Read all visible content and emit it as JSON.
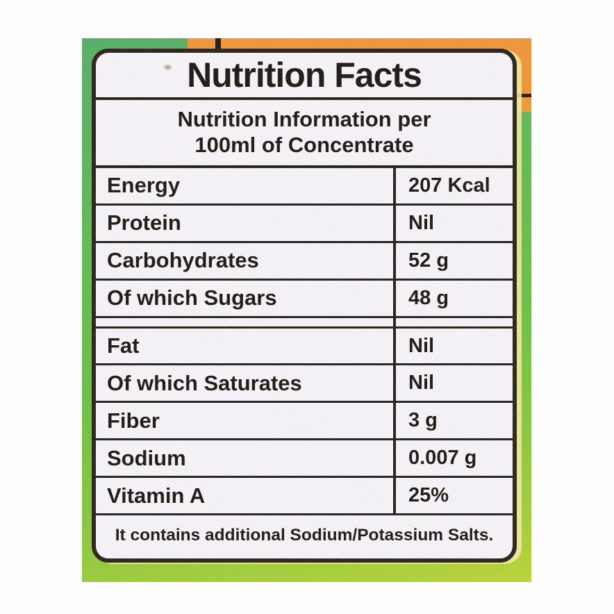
{
  "photo": {
    "palette": {
      "package_green_top": "#55ad66",
      "package_green_mid": "#68c043",
      "package_green_bottom": "#aed037",
      "package_orange": "#ee9331",
      "label_background": "#f6f3f8",
      "label_ink": "#211b14"
    }
  },
  "label": {
    "title": "Nutrition Facts",
    "subtitle_line1": "Nutrition Information per",
    "subtitle_line2": "100ml of Concentrate",
    "rows": [
      {
        "name": "Energy",
        "value": "207 Kcal"
      },
      {
        "name": "Protein",
        "value": "Nil"
      },
      {
        "name": "Carbohydrates",
        "value": "52 g"
      },
      {
        "name": "Of which Sugars",
        "value": "48 g"
      },
      {
        "name": "Fat",
        "value": "Nil"
      },
      {
        "name": "Of which Saturates",
        "value": "Nil"
      },
      {
        "name": "Fiber",
        "value": "3 g"
      },
      {
        "name": "Sodium",
        "value": "0.007 g"
      },
      {
        "name": "Vitamin A",
        "value": "25%"
      }
    ],
    "footer": "It contains additional Sodium/Potassium Salts."
  }
}
